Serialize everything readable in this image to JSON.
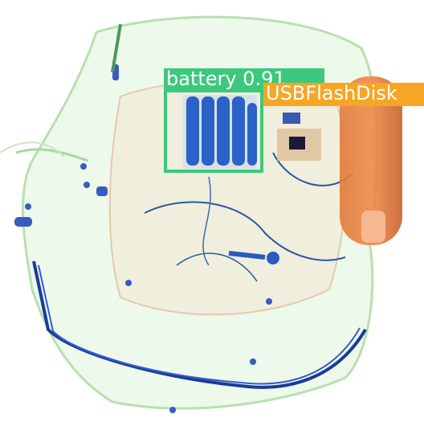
{
  "image": {
    "description_type": "x-ray baggage scan with object detections"
  },
  "detections": [
    {
      "label": "battery 0.91",
      "color": "#3cc87d"
    },
    {
      "label": "USBFlashDisk",
      "color": "#f5a623"
    }
  ]
}
